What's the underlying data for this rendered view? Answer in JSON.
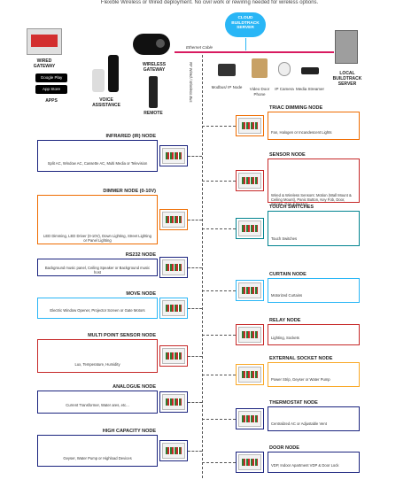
{
  "intro": "Flexible Wireless or Wired deployment. No civil work or rewiring needed for wireless options.",
  "cloud": {
    "line1": "CLOUD",
    "line2": "BUILDTRACK",
    "line3": "SERVER"
  },
  "ethernet": "Ethernet Cable",
  "wireless_label": "RF Wired / Wireless Bus",
  "top": {
    "wired_gateway": "WIRED GATEWAY",
    "google_play": "Google Play",
    "app_store": "App Store",
    "apps": "APPS",
    "voice_assistance": "VOICE ASSISTANCE",
    "wireless_gateway": "WIRELESS GATEWAY",
    "remote": "REMOTE",
    "local_server": "LOCAL BUILDTRACK SERVER",
    "modbus": "Modbus/ IP Node",
    "video_door_phone": "Video Door Phone",
    "ip_camera": "IP Camera",
    "media_streamer": "Media Streamer"
  },
  "left_nodes": [
    {
      "title": "INFRARED (IR) NODE",
      "desc": "Split AC, Window AC, Cassette AC, Multi Media or Television",
      "color": "#1a237e"
    },
    {
      "title": "DIMMER NODE (0-10V)",
      "desc": "LED Dimming, LED Driver (0-10V), Down Lighting, Street Lighting or Panel Lighting",
      "color": "#ef6c00"
    },
    {
      "title": "RS232 NODE",
      "desc": "Background music panel, Ceiling Speaker or Background music host",
      "color": "#1a237e"
    },
    {
      "title": "MOVE NODE",
      "desc": "Electric Window Opener, Projector Screen or Gate Motors",
      "color": "#29b6f6"
    },
    {
      "title": "MULTI POINT SENSOR NODE",
      "desc": "Lux, Temperature, Humidity",
      "color": "#c62828"
    },
    {
      "title": "ANALOGUE NODE",
      "desc": "Current Transformer, Water ares, etc...",
      "color": "#1a237e"
    },
    {
      "title": "HIGH CAPACITY NODE",
      "desc": "Geyser, Water Pump or Highload Devices",
      "color": "#1a237e"
    }
  ],
  "right_nodes": [
    {
      "title": "TRIAC DIMMING NODE",
      "desc": "Fan, Halogen or Incandescent Lights",
      "color": "#ef6c00"
    },
    {
      "title": "SENSOR NODE",
      "desc": "Wired & Wireless Sensors: Motion (Wall Mount & Ceiling Mount), Panic Button, Key Fob, Door, Smoke, Gas & Buzzer",
      "color": "#c62828"
    },
    {
      "title": "TOUCH SWITCHES",
      "desc": "Touch Switches",
      "color": "#00838f"
    },
    {
      "title": "CURTAIN NODE",
      "desc": "Motorized Curtains",
      "color": "#29b6f6"
    },
    {
      "title": "RELAY NODE",
      "desc": "Lighting, Sockets",
      "color": "#c62828"
    },
    {
      "title": "EXTERNAL SOCKET NODE",
      "desc": "Power Strip, Geyser or Water Pump",
      "color": "#f9a825"
    },
    {
      "title": "THERMOSTAT NODE",
      "desc": "Centralized AC or Adjustable Vent",
      "color": "#1a237e"
    },
    {
      "title": "DOOR NODE",
      "desc": "VDP, Indoor Apartment VDP & Door Lock",
      "color": "#1a237e"
    }
  ]
}
